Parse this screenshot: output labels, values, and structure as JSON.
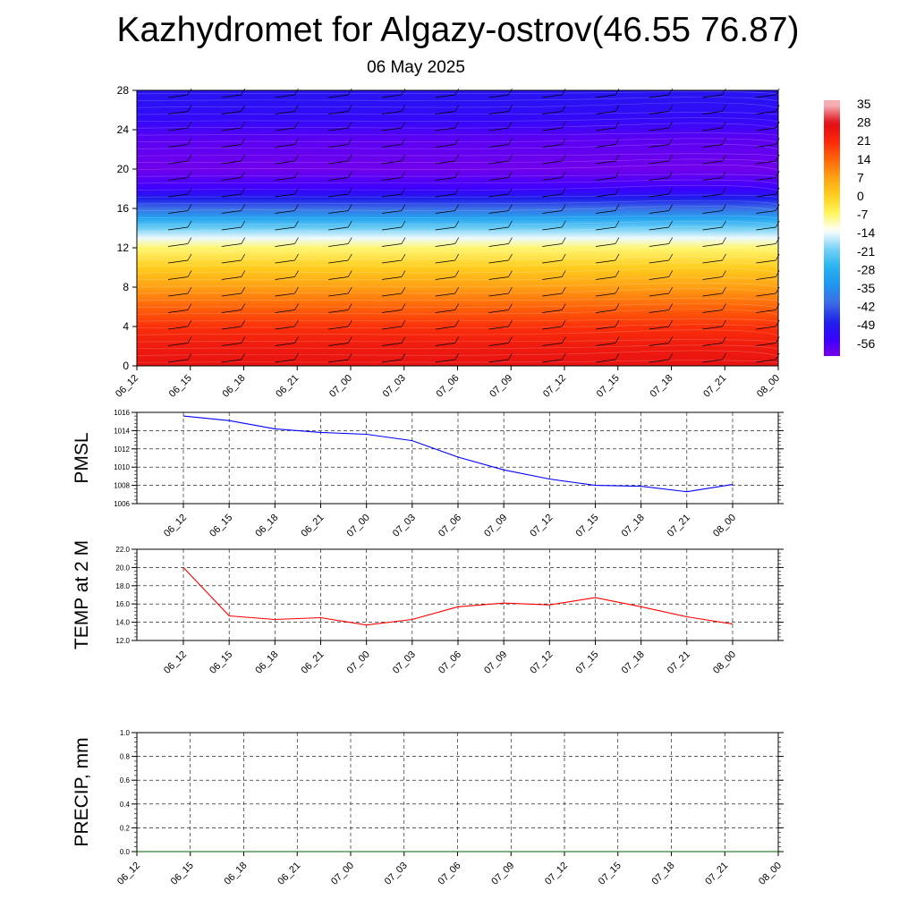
{
  "title": "Kazhydromet for Algazy-ostrov(46.55 76.87)",
  "subtitle": "06 May 2025",
  "colors": {
    "pmsl_line": "#0000ff",
    "temp_line": "#ff0000",
    "precip_line": "#006400",
    "grid": "#000000",
    "frame": "#000000"
  },
  "chart_data": [
    {
      "type": "heatmap",
      "name": "cross-section",
      "x_ticks": [
        "06_12",
        "06_15",
        "06_18",
        "06_21",
        "07_00",
        "07_03",
        "07_06",
        "07_09",
        "07_12",
        "07_15",
        "07_18",
        "07_21",
        "08_00"
      ],
      "y_ticks": [
        "0",
        "4",
        "8",
        "12",
        "16",
        "20",
        "24",
        "28"
      ],
      "ylim": [
        0,
        28
      ],
      "temperature_profile_by_level": [
        {
          "level": 0,
          "temp": 26
        },
        {
          "level": 2,
          "temp": 24
        },
        {
          "level": 4,
          "temp": 20
        },
        {
          "level": 6,
          "temp": 14
        },
        {
          "level": 8,
          "temp": 7
        },
        {
          "level": 10,
          "temp": 0
        },
        {
          "level": 12,
          "temp": -8
        },
        {
          "level": 13,
          "temp": -15
        },
        {
          "level": 14,
          "temp": -22
        },
        {
          "level": 15,
          "temp": -32
        },
        {
          "level": 16,
          "temp": -42
        },
        {
          "level": 17,
          "temp": -50
        },
        {
          "level": 18,
          "temp": -57
        },
        {
          "level": 20,
          "temp": -62
        },
        {
          "level": 23,
          "temp": -60
        },
        {
          "level": 25,
          "temp": -55
        },
        {
          "level": 28,
          "temp": -52
        }
      ],
      "colorbar_labels": [
        "35",
        "28",
        "21",
        "14",
        "7",
        "0",
        "-7",
        "-14",
        "-21",
        "-28",
        "-35",
        "-42",
        "-49",
        "-56"
      ],
      "wind_barbs": true
    },
    {
      "type": "line",
      "name": "pmsl",
      "ylabel": "PMSL",
      "x": [
        "06_12",
        "06_15",
        "06_18",
        "06_21",
        "07_00",
        "07_03",
        "07_06",
        "07_09",
        "07_12",
        "07_15",
        "07_18",
        "07_21",
        "08_00"
      ],
      "values": [
        1015.6,
        1015.1,
        1014.2,
        1013.8,
        1013.6,
        1012.9,
        1011.1,
        1009.7,
        1008.7,
        1008.0,
        1007.9,
        1007.3,
        1008.1
      ],
      "ylim": [
        1006,
        1016
      ],
      "y_ticks": [
        "1006",
        "1008",
        "1010",
        "1012",
        "1014",
        "1016"
      ],
      "grid": true
    },
    {
      "type": "line",
      "name": "temp2m",
      "ylabel": "TEMP at 2 M",
      "x": [
        "06_12",
        "06_15",
        "06_18",
        "06_21",
        "07_00",
        "07_03",
        "07_06",
        "07_09",
        "07_12",
        "07_15",
        "07_18",
        "07_21",
        "08_00"
      ],
      "values": [
        20.0,
        14.7,
        14.3,
        14.5,
        13.7,
        14.3,
        15.7,
        16.1,
        15.9,
        16.7,
        15.7,
        14.6,
        13.8
      ],
      "ylim": [
        12,
        22
      ],
      "y_ticks": [
        "12.0",
        "14.0",
        "16.0",
        "18.0",
        "20.0",
        "22.0"
      ],
      "grid": true
    },
    {
      "type": "line",
      "name": "precip",
      "ylabel": "PRECIP, mm",
      "x_ticks": [
        "06_12",
        "06_15",
        "06_18",
        "06_21",
        "07_00",
        "07_03",
        "07_06",
        "07_09",
        "07_12",
        "07_15",
        "07_18",
        "07_21",
        "08_00"
      ],
      "values": [
        0,
        0,
        0,
        0,
        0,
        0,
        0,
        0,
        0,
        0,
        0,
        0,
        0
      ],
      "ylim": [
        0,
        1
      ],
      "y_ticks": [
        "0.0",
        "0.2",
        "0.4",
        "0.6",
        "0.8",
        "1.0"
      ],
      "grid": true
    }
  ]
}
